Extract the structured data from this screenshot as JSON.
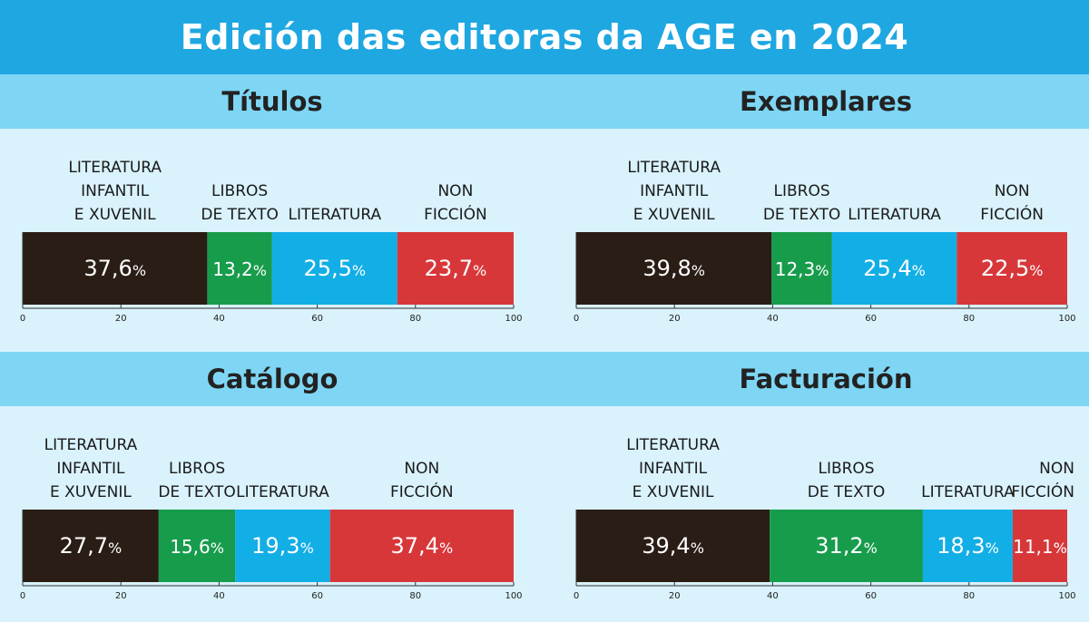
{
  "header": {
    "title": "Edición das editoras da AGE en 2024"
  },
  "colors": {
    "header_bg": "#1ea7e1",
    "band_bg": "#7ed6f4",
    "panel_bg": "#d9f2fc",
    "literatura_infantil": "#2a1d15",
    "libros_texto": "#179c4c",
    "literatura": "#12aee6",
    "non_ficcion": "#d8373a"
  },
  "chart_data": [
    {
      "type": "bar",
      "orientation": "horizontal-stacked",
      "title": "Títulos",
      "xlim": [
        0,
        100
      ],
      "ticks": [
        0,
        20,
        40,
        60,
        80,
        100
      ],
      "series": [
        {
          "name": [
            "LITERATURA",
            "INFANTIL",
            "E XUVENIL"
          ],
          "value": 37.6,
          "label": "37,6",
          "unit": "%",
          "color": "#2a1d15"
        },
        {
          "name": [
            "LIBROS",
            "DE TEXTO"
          ],
          "value": 13.2,
          "label": "13,2",
          "unit": "%",
          "color": "#179c4c"
        },
        {
          "name": [
            "LITERATURA"
          ],
          "value": 25.5,
          "label": "25,5",
          "unit": "%",
          "color": "#12aee6"
        },
        {
          "name": [
            "NON",
            "FICCIÓN"
          ],
          "value": 23.7,
          "label": "23,7",
          "unit": "%",
          "color": "#d8373a"
        }
      ]
    },
    {
      "type": "bar",
      "orientation": "horizontal-stacked",
      "title": "Exemplares",
      "xlim": [
        0,
        100
      ],
      "ticks": [
        0,
        20,
        40,
        60,
        80,
        100
      ],
      "series": [
        {
          "name": [
            "LITERATURA",
            "INFANTIL",
            "E XUVENIL"
          ],
          "value": 39.8,
          "label": "39,8",
          "unit": "%",
          "color": "#2a1d15"
        },
        {
          "name": [
            "LIBROS",
            "DE TEXTO"
          ],
          "value": 12.3,
          "label": "12,3",
          "unit": "%",
          "color": "#179c4c"
        },
        {
          "name": [
            "LITERATURA"
          ],
          "value": 25.4,
          "label": "25,4",
          "unit": "%",
          "color": "#12aee6"
        },
        {
          "name": [
            "NON",
            "FICCIÓN"
          ],
          "value": 22.5,
          "label": "22,5",
          "unit": "%",
          "color": "#d8373a"
        }
      ]
    },
    {
      "type": "bar",
      "orientation": "horizontal-stacked",
      "title": "Catálogo",
      "xlim": [
        0,
        100
      ],
      "ticks": [
        0,
        20,
        40,
        60,
        80,
        100
      ],
      "series": [
        {
          "name": [
            "LITERATURA",
            "INFANTIL",
            "E XUVENIL"
          ],
          "value": 27.7,
          "label": "27,7",
          "unit": "%",
          "color": "#2a1d15"
        },
        {
          "name": [
            "LIBROS",
            "DE TEXTO"
          ],
          "value": 15.6,
          "label": "15,6",
          "unit": "%",
          "color": "#179c4c"
        },
        {
          "name": [
            "LITERATURA"
          ],
          "value": 19.3,
          "label": "19,3",
          "unit": "%",
          "color": "#12aee6"
        },
        {
          "name": [
            "NON",
            "FICCIÓN"
          ],
          "value": 37.4,
          "label": "37,4",
          "unit": "%",
          "color": "#d8373a"
        }
      ]
    },
    {
      "type": "bar",
      "orientation": "horizontal-stacked",
      "title": "Facturación",
      "xlim": [
        0,
        100
      ],
      "ticks": [
        0,
        20,
        40,
        60,
        80,
        100
      ],
      "series": [
        {
          "name": [
            "LITERATURA",
            "INFANTIL",
            "E XUVENIL"
          ],
          "value": 39.4,
          "label": "39,4",
          "unit": "%",
          "color": "#2a1d15"
        },
        {
          "name": [
            "LIBROS",
            "DE TEXTO"
          ],
          "value": 31.2,
          "label": "31,2",
          "unit": "%",
          "color": "#179c4c"
        },
        {
          "name": [
            "LITERATURA"
          ],
          "value": 18.3,
          "label": "18,3",
          "unit": "%",
          "color": "#12aee6"
        },
        {
          "name": [
            "NON",
            "FICCIÓN"
          ],
          "value": 11.1,
          "label": "11,1",
          "unit": "%",
          "color": "#d8373a"
        }
      ]
    }
  ]
}
